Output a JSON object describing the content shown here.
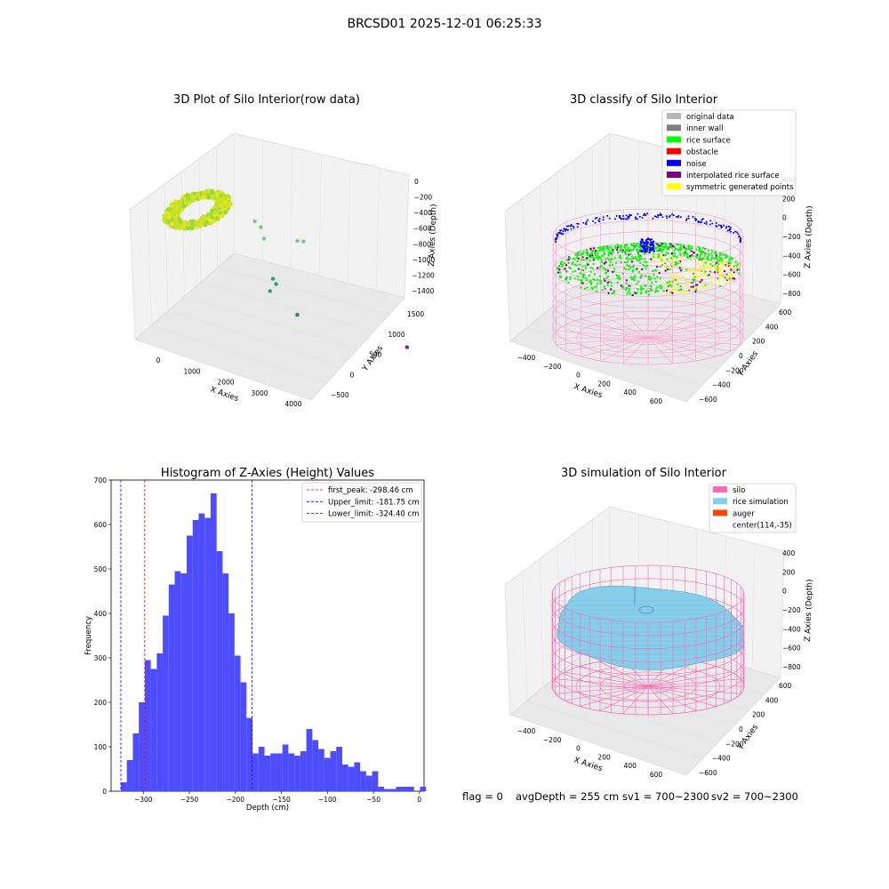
{
  "suptitle": "BRCSD01 2025-12-01 06:25:33",
  "footer": {
    "flag": "flag = 0",
    "avg": "avgDepth = 255 cm",
    "sv1": "sv1 = 700~2300",
    "sv2": "sv2 = 700~2300"
  },
  "chart_data": [
    {
      "type": "scatter",
      "title": "3D Plot of Silo Interior(row data)",
      "xlabel": "X Axies",
      "ylabel": "Y Axies",
      "zlabel": "Z Axies (Depth)",
      "x_ticks": [
        "0",
        "1000",
        "2000",
        "3000",
        "4000"
      ],
      "y_ticks": [
        "−500",
        "0",
        "500",
        "1000",
        "1500"
      ],
      "z_ticks": [
        "0",
        "−200",
        "−400",
        "−600",
        "−800",
        "−1000",
        "−1200",
        "−1400"
      ],
      "outliers": [
        {
          "x": 1600,
          "y": -50,
          "z": -200
        },
        {
          "x": 1700,
          "y": -50,
          "z": -260
        },
        {
          "x": 1750,
          "y": -50,
          "z": -400
        },
        {
          "x": 2300,
          "y": 0,
          "z": -330
        },
        {
          "x": 2400,
          "y": 0,
          "z": -320
        },
        {
          "x": 1900,
          "y": 0,
          "z": -900
        },
        {
          "x": 1950,
          "y": 0,
          "z": -960
        },
        {
          "x": 1850,
          "y": 0,
          "z": -1070
        },
        {
          "x": 2300,
          "y": 0,
          "z": -1300
        },
        {
          "x": 4100,
          "y": -300,
          "z": -1400
        }
      ]
    },
    {
      "type": "scatter",
      "title": "3D classify of Silo Interior",
      "xlabel": "X Axies",
      "ylabel": "Y Axies",
      "zlabel": "Z Axies (Depth)",
      "x_ticks": [
        "−400",
        "−200",
        "0",
        "200",
        "400",
        "600"
      ],
      "y_ticks": [
        "−600",
        "−400",
        "−200",
        "0",
        "200",
        "400",
        "600"
      ],
      "z_ticks": [
        "400",
        "200",
        "0",
        "−200",
        "−400",
        "−600",
        "−800"
      ],
      "legend": [
        {
          "label": "original data",
          "color": "#b5b5b5"
        },
        {
          "label": "inner wall",
          "color": "#808080"
        },
        {
          "label": "rice surface",
          "color": "#00ff00"
        },
        {
          "label": "obstacle",
          "color": "#ff0000"
        },
        {
          "label": "noise",
          "color": "#0000ff"
        },
        {
          "label": "interpolated rice surface",
          "color": "#800080"
        },
        {
          "label": "symmetric generated points",
          "color": "#ffff00"
        }
      ]
    },
    {
      "type": "bar",
      "title": "Histogram of Z-Axies (Height) Values",
      "xlabel": "Depth (cm)",
      "ylabel": "Frequency",
      "xlim": [
        -335,
        5
      ],
      "ylim": [
        0,
        700
      ],
      "x_ticks": [
        -300,
        -250,
        -200,
        -150,
        -100,
        -50,
        0
      ],
      "y_ticks": [
        0,
        100,
        200,
        300,
        400,
        500,
        600,
        700
      ],
      "bin_start": -324.4,
      "bin_width": 6.5,
      "values": [
        20,
        70,
        130,
        200,
        295,
        275,
        310,
        395,
        465,
        495,
        490,
        575,
        610,
        625,
        615,
        670,
        540,
        490,
        400,
        305,
        245,
        165,
        85,
        100,
        80,
        85,
        85,
        105,
        85,
        80,
        90,
        140,
        115,
        95,
        75,
        90,
        100,
        60,
        55,
        65,
        45,
        35,
        45,
        10,
        5,
        5,
        10,
        10,
        10,
        0,
        10
      ],
      "vlines": [
        {
          "label": "first_peak: -298.46 cm",
          "x": -298.46,
          "color": "#ff0000"
        },
        {
          "label": "Upper_limit: -181.75 cm",
          "x": -181.75,
          "color": "#0000ff"
        },
        {
          "label": "Lower_limit: -324.40 cm",
          "x": -324.4,
          "color": "#0000ff"
        }
      ],
      "bar_color": "#4d4dff"
    },
    {
      "type": "scatter",
      "title": "3D simulation of Silo Interior",
      "xlabel": "X Axies",
      "ylabel": "Y Axies",
      "zlabel": "Z Axies (Depth)",
      "x_ticks": [
        "−400",
        "−200",
        "0",
        "200",
        "400",
        "600"
      ],
      "y_ticks": [
        "−600",
        "−400",
        "−200",
        "0",
        "200",
        "400",
        "600"
      ],
      "z_ticks": [
        "400",
        "200",
        "0",
        "−200",
        "−400",
        "−600",
        "−800"
      ],
      "legend": [
        {
          "label": "silo",
          "color": "#ff69b4"
        },
        {
          "label": "rice simulation",
          "color": "#87ceeb"
        },
        {
          "label": "auger",
          "color": "#ff4500"
        },
        {
          "label": "center(114,-35)",
          "color": ""
        }
      ]
    }
  ]
}
